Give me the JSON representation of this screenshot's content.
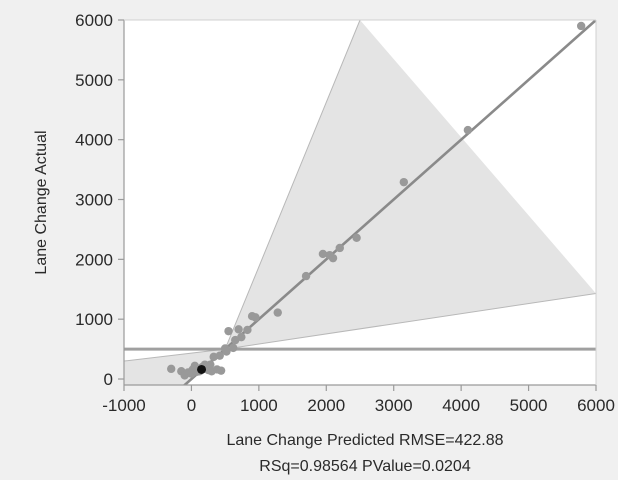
{
  "chart_data": {
    "type": "scatter",
    "xlabel": "Lane Change Predicted RMSE=422.88",
    "stats_label": "RSq=0.98564 PValue=0.0204",
    "ylabel": "Lane Change Actual",
    "xlim": [
      -1000,
      6000
    ],
    "ylim": [
      -100,
      6000
    ],
    "x_ticks": [
      -1000,
      0,
      1000,
      2000,
      3000,
      4000,
      5000,
      6000
    ],
    "y_ticks": [
      0,
      1000,
      2000,
      3000,
      4000,
      5000,
      6000
    ],
    "grid": false,
    "mean_line_y": 500,
    "fit_line": {
      "x1": -1000,
      "y1": -1000,
      "x2": 6000,
      "y2": 6000
    },
    "confidence_band": {
      "upper": [
        [
          -1000,
          -1000
        ],
        [
          500,
          500
        ],
        [
          2500,
          6000
        ]
      ],
      "lower": [
        [
          -1000,
          300
        ],
        [
          500,
          500
        ],
        [
          6000,
          1430
        ]
      ]
    },
    "points": [
      {
        "x": -300,
        "y": 170
      },
      {
        "x": -150,
        "y": 130
      },
      {
        "x": -100,
        "y": 60
      },
      {
        "x": -50,
        "y": 110
      },
      {
        "x": 0,
        "y": 90
      },
      {
        "x": 20,
        "y": 160
      },
      {
        "x": 50,
        "y": 220
      },
      {
        "x": 80,
        "y": 120
      },
      {
        "x": 120,
        "y": 130
      },
      {
        "x": 160,
        "y": 200
      },
      {
        "x": 200,
        "y": 240
      },
      {
        "x": 250,
        "y": 150
      },
      {
        "x": 280,
        "y": 240
      },
      {
        "x": 300,
        "y": 130
      },
      {
        "x": 330,
        "y": 370
      },
      {
        "x": 380,
        "y": 160
      },
      {
        "x": 420,
        "y": 390
      },
      {
        "x": 440,
        "y": 140
      },
      {
        "x": 500,
        "y": 510
      },
      {
        "x": 520,
        "y": 460
      },
      {
        "x": 550,
        "y": 800
      },
      {
        "x": 620,
        "y": 520
      },
      {
        "x": 650,
        "y": 650
      },
      {
        "x": 700,
        "y": 830
      },
      {
        "x": 740,
        "y": 700
      },
      {
        "x": 830,
        "y": 820
      },
      {
        "x": 900,
        "y": 1050
      },
      {
        "x": 950,
        "y": 1030
      },
      {
        "x": 1280,
        "y": 1110
      },
      {
        "x": 1700,
        "y": 1720
      },
      {
        "x": 1950,
        "y": 2090
      },
      {
        "x": 2050,
        "y": 2070
      },
      {
        "x": 2100,
        "y": 2020
      },
      {
        "x": 2200,
        "y": 2190
      },
      {
        "x": 2450,
        "y": 2360
      },
      {
        "x": 3150,
        "y": 3290
      },
      {
        "x": 4100,
        "y": 4160
      },
      {
        "x": 5780,
        "y": 5900
      }
    ],
    "highlight_point": {
      "x": 150,
      "y": 160
    },
    "colors": {
      "band": "#e4e4e4",
      "band_edge": "#b8b8b8",
      "fit_line": "#8a8a8a",
      "mean_line": "#a0a0a0",
      "point": "#999999",
      "highlight": "#111111",
      "plot_bg": "#ffffff",
      "axis": "#9a9a9a",
      "page_bg": "#f0f0f0"
    }
  }
}
